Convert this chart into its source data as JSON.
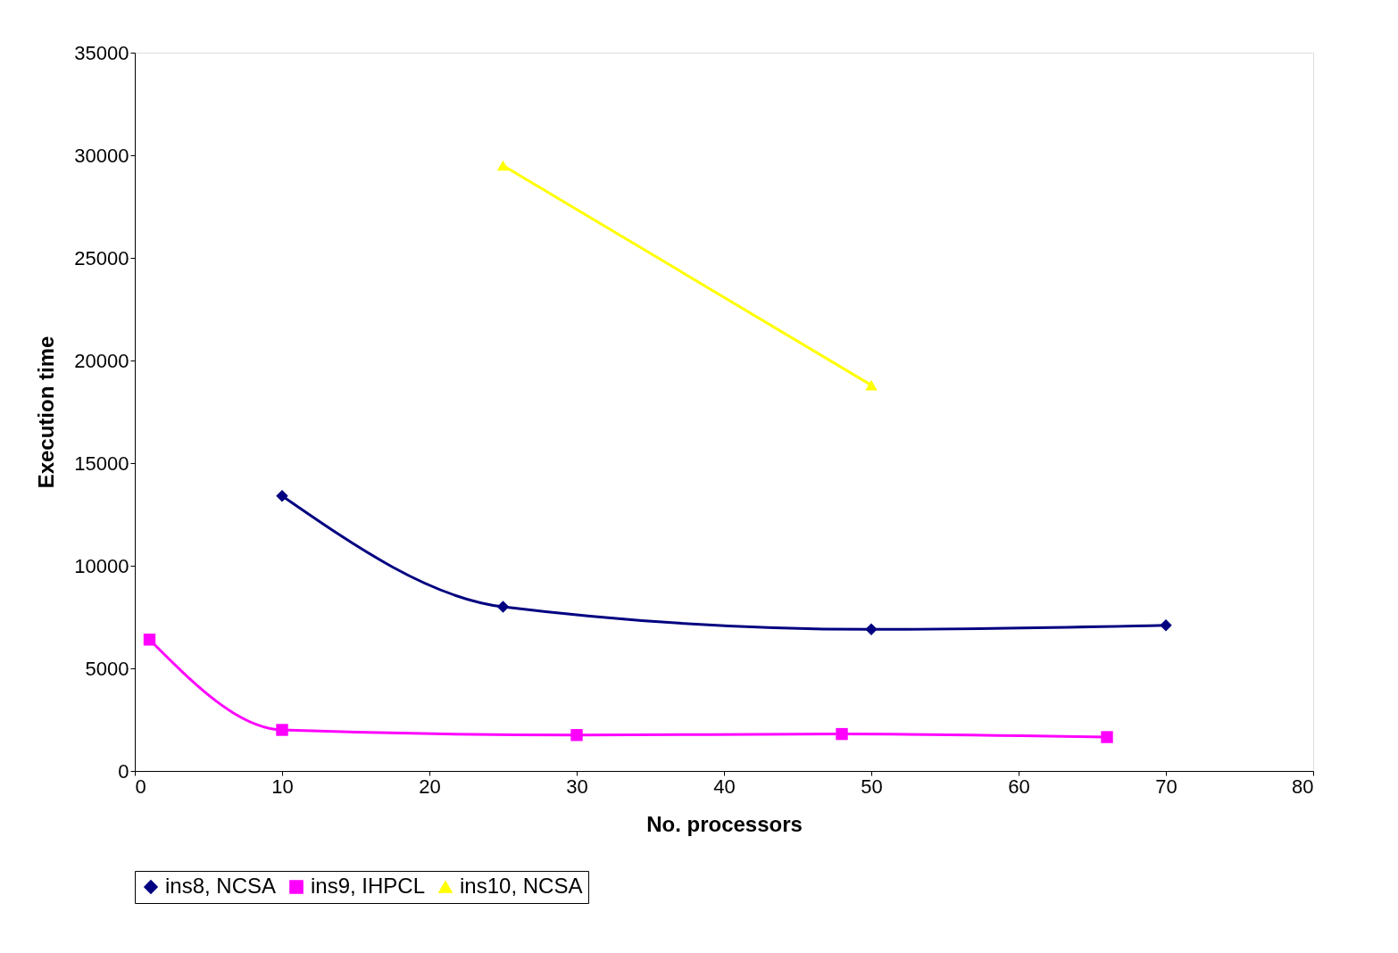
{
  "chart_data": {
    "type": "line",
    "xlabel": "No. processors",
    "ylabel": "Execution time",
    "xlim": [
      0,
      80
    ],
    "xticks": [
      0,
      10,
      20,
      30,
      40,
      50,
      60,
      70,
      80
    ],
    "ylim": [
      0,
      35000
    ],
    "yticks": [
      0,
      5000,
      10000,
      15000,
      20000,
      25000,
      30000,
      35000
    ],
    "grid": false,
    "legend": "bottom",
    "line_style": "solid",
    "series": [
      {
        "name": "ins8, NCSA",
        "color": "#000080",
        "marker": "diamond",
        "x": [
          10,
          25,
          50,
          70
        ],
        "values": [
          13400,
          8000,
          6900,
          7100
        ]
      },
      {
        "name": "ins9, IHPCL",
        "color": "#ff00ff",
        "marker": "square",
        "x": [
          1,
          10,
          30,
          48,
          66
        ],
        "values": [
          6400,
          2000,
          1750,
          1800,
          1650
        ]
      },
      {
        "name": "ins10, NCSA",
        "color": "#ffff00",
        "marker": "triangle",
        "x": [
          25,
          50
        ],
        "values": [
          29500,
          18800
        ]
      }
    ]
  }
}
